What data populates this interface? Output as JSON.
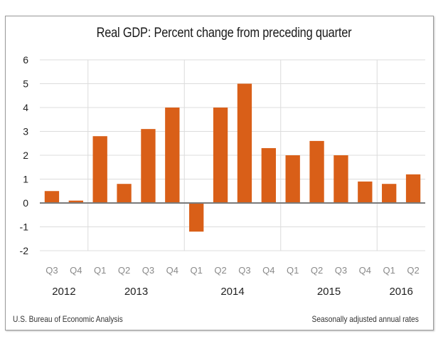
{
  "chart_data": {
    "type": "bar",
    "title": "Real GDP:  Percent change from preceding quarter",
    "xlabel": "",
    "ylabel": "",
    "ylim": [
      -2,
      6
    ],
    "yticks": [
      "6",
      "5",
      "4",
      "3",
      "2",
      "1",
      "0",
      "-1",
      "-2"
    ],
    "ytick_values": [
      6,
      5,
      4,
      3,
      2,
      1,
      0,
      -1,
      -2
    ],
    "grid": true,
    "legend": "none",
    "bar_color": "#d95f18",
    "categories": [
      "Q3",
      "Q4",
      "Q1",
      "Q2",
      "Q3",
      "Q4",
      "Q1",
      "Q2",
      "Q3",
      "Q4",
      "Q1",
      "Q2",
      "Q3",
      "Q4",
      "Q1",
      "Q2"
    ],
    "years": [
      {
        "label": "2012",
        "start_index": 0,
        "end_index": 1
      },
      {
        "label": "2013",
        "start_index": 2,
        "end_index": 5
      },
      {
        "label": "2014",
        "start_index": 6,
        "end_index": 9
      },
      {
        "label": "2015",
        "start_index": 10,
        "end_index": 13
      },
      {
        "label": "2016",
        "start_index": 14,
        "end_index": 15
      }
    ],
    "values": [
      0.5,
      0.1,
      2.8,
      0.8,
      3.1,
      4.0,
      -1.2,
      4.0,
      5.0,
      2.3,
      2.0,
      2.6,
      2.0,
      0.9,
      0.8,
      1.2
    ]
  },
  "footer": {
    "source": "U.S. Bureau of Economic Analysis",
    "note": "Seasonally adjusted annual  rates"
  }
}
